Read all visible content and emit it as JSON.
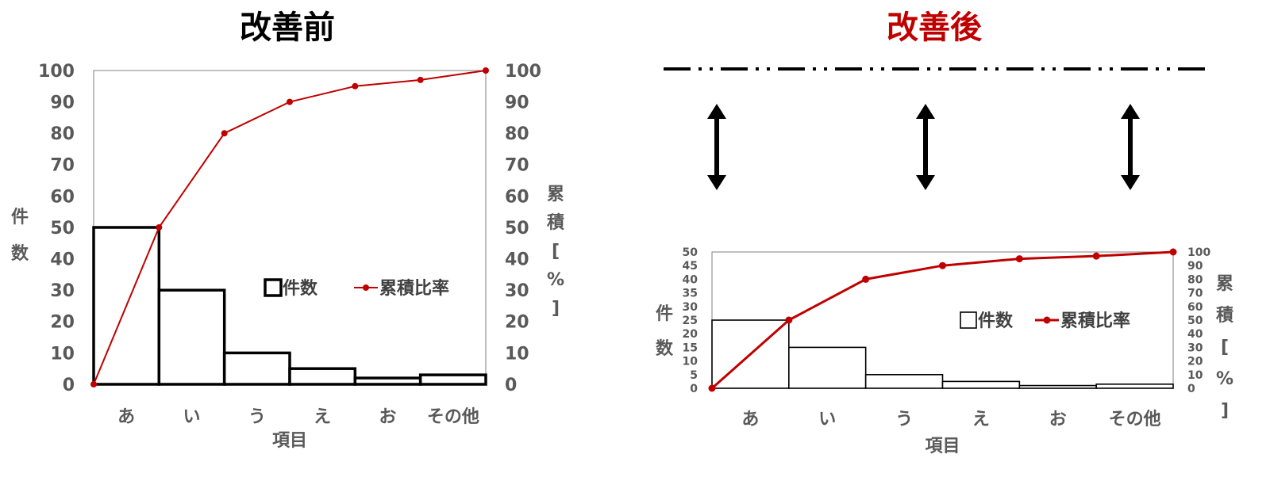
{
  "titles": {
    "before": "改善前",
    "after": "改善後",
    "before_color": "#000000",
    "after_color": "#c00000"
  },
  "colors": {
    "line": "#c00000",
    "bar_edge": "#000000",
    "tick_text": "#595959"
  },
  "icons": [
    "up-down-arrow-icon",
    "up-down-arrow-icon",
    "up-down-arrow-icon"
  ],
  "chart_data": [
    {
      "type": "bar",
      "title": "改善前",
      "categories": [
        "あ",
        "い",
        "う",
        "え",
        "お",
        "その他"
      ],
      "xlabel": "項目",
      "ylabel": "件数",
      "y2label": "累積[%]",
      "ylim": [
        0,
        100
      ],
      "y2lim": [
        0,
        100
      ],
      "yticks": [
        0,
        10,
        20,
        30,
        40,
        50,
        60,
        70,
        80,
        90,
        100
      ],
      "y2ticks": [
        0,
        10,
        20,
        30,
        40,
        50,
        60,
        70,
        80,
        90,
        100
      ],
      "legend_position": "center-right",
      "grid": false,
      "series": [
        {
          "name": "件数",
          "type": "bar",
          "axis": "left",
          "values": [
            50,
            30,
            10,
            5,
            2,
            3
          ]
        },
        {
          "name": "累積比率",
          "type": "line",
          "axis": "right",
          "x": [
            "",
            "あ",
            "い",
            "う",
            "え",
            "お",
            "その他"
          ],
          "values": [
            0,
            50,
            80,
            90,
            95,
            97,
            100
          ]
        }
      ]
    },
    {
      "type": "bar",
      "title": "改善後",
      "categories": [
        "あ",
        "い",
        "う",
        "え",
        "お",
        "その他"
      ],
      "xlabel": "項目",
      "ylabel": "件数",
      "y2label": "累積[%]",
      "ylim": [
        0,
        50
      ],
      "y2lim": [
        0,
        100
      ],
      "yticks": [
        0,
        5,
        10,
        15,
        20,
        25,
        30,
        35,
        40,
        45,
        50
      ],
      "y2ticks": [
        0,
        10,
        20,
        30,
        40,
        50,
        60,
        70,
        80,
        90,
        100
      ],
      "legend_position": "center-right",
      "grid": false,
      "series": [
        {
          "name": "件数",
          "type": "bar",
          "axis": "left",
          "values": [
            25,
            15,
            5,
            2.5,
            1,
            1.5
          ]
        },
        {
          "name": "累積比率",
          "type": "line",
          "axis": "right",
          "x": [
            "",
            "あ",
            "い",
            "う",
            "え",
            "お",
            "その他"
          ],
          "values": [
            0,
            50,
            80,
            90,
            95,
            97,
            100
          ]
        }
      ]
    }
  ]
}
